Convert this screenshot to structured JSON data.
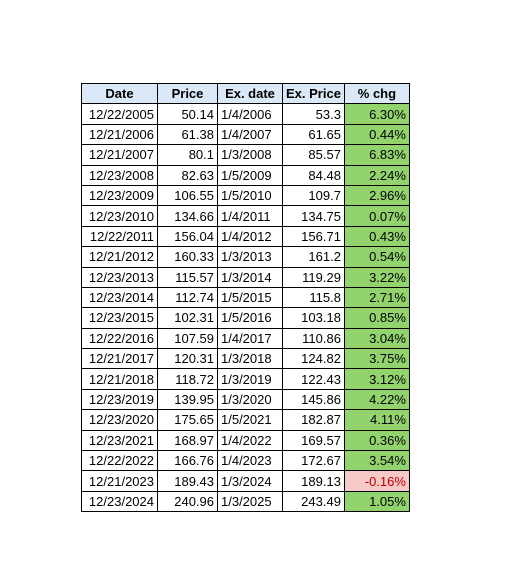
{
  "table": {
    "headers": {
      "date": "Date",
      "price": "Price",
      "ex_date": "Ex. date",
      "ex_price": "Ex. Price",
      "pct_chg": "% chg"
    },
    "rows": [
      {
        "date": "12/22/2005",
        "price": "50.14",
        "ex_date": "1/4/2006",
        "ex_price": "53.3",
        "pct_chg": "6.30%"
      },
      {
        "date": "12/21/2006",
        "price": "61.38",
        "ex_date": "1/4/2007",
        "ex_price": "61.65",
        "pct_chg": "0.44%"
      },
      {
        "date": "12/21/2007",
        "price": "80.1",
        "ex_date": "1/3/2008",
        "ex_price": "85.57",
        "pct_chg": "6.83%"
      },
      {
        "date": "12/23/2008",
        "price": "82.63",
        "ex_date": "1/5/2009",
        "ex_price": "84.48",
        "pct_chg": "2.24%"
      },
      {
        "date": "12/23/2009",
        "price": "106.55",
        "ex_date": "1/5/2010",
        "ex_price": "109.7",
        "pct_chg": "2.96%"
      },
      {
        "date": "12/23/2010",
        "price": "134.66",
        "ex_date": "1/4/2011",
        "ex_price": "134.75",
        "pct_chg": "0.07%"
      },
      {
        "date": "12/22/2011",
        "price": "156.04",
        "ex_date": "1/4/2012",
        "ex_price": "156.71",
        "pct_chg": "0.43%"
      },
      {
        "date": "12/21/2012",
        "price": "160.33",
        "ex_date": "1/3/2013",
        "ex_price": "161.2",
        "pct_chg": "0.54%"
      },
      {
        "date": "12/23/2013",
        "price": "115.57",
        "ex_date": "1/3/2014",
        "ex_price": "119.29",
        "pct_chg": "3.22%"
      },
      {
        "date": "12/23/2014",
        "price": "112.74",
        "ex_date": "1/5/2015",
        "ex_price": "115.8",
        "pct_chg": "2.71%"
      },
      {
        "date": "12/23/2015",
        "price": "102.31",
        "ex_date": "1/5/2016",
        "ex_price": "103.18",
        "pct_chg": "0.85%"
      },
      {
        "date": "12/22/2016",
        "price": "107.59",
        "ex_date": "1/4/2017",
        "ex_price": "110.86",
        "pct_chg": "3.04%"
      },
      {
        "date": "12/21/2017",
        "price": "120.31",
        "ex_date": "1/3/2018",
        "ex_price": "124.82",
        "pct_chg": "3.75%"
      },
      {
        "date": "12/21/2018",
        "price": "118.72",
        "ex_date": "1/3/2019",
        "ex_price": "122.43",
        "pct_chg": "3.12%"
      },
      {
        "date": "12/23/2019",
        "price": "139.95",
        "ex_date": "1/3/2020",
        "ex_price": "145.86",
        "pct_chg": "4.22%"
      },
      {
        "date": "12/23/2020",
        "price": "175.65",
        "ex_date": "1/5/2021",
        "ex_price": "182.87",
        "pct_chg": "4.11%"
      },
      {
        "date": "12/23/2021",
        "price": "168.97",
        "ex_date": "1/4/2022",
        "ex_price": "169.57",
        "pct_chg": "0.36%"
      },
      {
        "date": "12/22/2022",
        "price": "166.76",
        "ex_date": "1/4/2023",
        "ex_price": "172.67",
        "pct_chg": "3.54%"
      },
      {
        "date": "12/21/2023",
        "price": "189.43",
        "ex_date": "1/3/2024",
        "ex_price": "189.13",
        "pct_chg": "-0.16%"
      },
      {
        "date": "12/23/2024",
        "price": "240.96",
        "ex_date": "1/3/2025",
        "ex_price": "243.49",
        "pct_chg": "1.05%"
      }
    ]
  },
  "colors": {
    "header_fill": "#dae8f7",
    "positive_fill": "#92d36e",
    "negative_fill": "#f8c9c9",
    "negative_text": "#c00000"
  }
}
